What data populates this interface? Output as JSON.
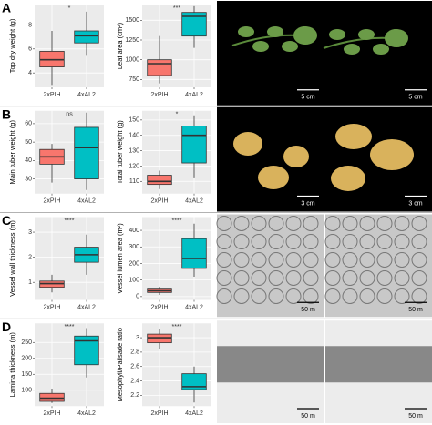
{
  "panels": [
    {
      "letter": "A",
      "scale_bars": [
        "5 cm",
        "5 cm"
      ]
    },
    {
      "letter": "B",
      "scale_bars": [
        "3 cm",
        "3 cm"
      ]
    },
    {
      "letter": "C",
      "scale_bars": [
        "50 m",
        "50 m"
      ]
    },
    {
      "letter": "D",
      "scale_bars": [
        "50 m",
        "50 m"
      ]
    }
  ],
  "chart_data": [
    {
      "type": "box",
      "y_label": "Top dry weight (g)",
      "significance": "*",
      "categories": [
        "2xPIH",
        "4xAL2"
      ],
      "colors": [
        "#f8766d",
        "#00bfc4"
      ],
      "boxes": [
        {
          "whislo": 3.0,
          "q1": 4.5,
          "med": 5.1,
          "q3": 5.8,
          "whishi": 7.5
        },
        {
          "whislo": 5.5,
          "q1": 6.5,
          "med": 7.1,
          "q3": 7.5,
          "whishi": 9.1
        }
      ],
      "ylim": [
        2.8,
        9.7
      ],
      "yticks": [
        4,
        6,
        8
      ],
      "grid": true
    },
    {
      "type": "box",
      "y_label": "Leaf area (cm²)",
      "significance": "***",
      "categories": [
        "2xPIH",
        "4xAL2"
      ],
      "colors": [
        "#f8766d",
        "#00bfc4"
      ],
      "boxes": [
        {
          "whislo": 700,
          "q1": 800,
          "med": 950,
          "q3": 1000,
          "whishi": 1300
        },
        {
          "whislo": 1150,
          "q1": 1300,
          "med": 1550,
          "q3": 1600,
          "whishi": 1680
        }
      ],
      "ylim": [
        650,
        1700
      ],
      "yticks": [
        750,
        1000,
        1250,
        1500
      ],
      "grid": true
    },
    {
      "type": "box",
      "y_label": "Main tuber weight (g)",
      "significance": "ns",
      "categories": [
        "2xPIH",
        "4xAL2"
      ],
      "colors": [
        "#f8766d",
        "#00bfc4"
      ],
      "boxes": [
        {
          "whislo": 28,
          "q1": 38,
          "med": 42,
          "q3": 46,
          "whishi": 49
        },
        {
          "whislo": 24,
          "q1": 30,
          "med": 47,
          "q3": 58,
          "whishi": 66
        }
      ],
      "ylim": [
        22,
        67
      ],
      "yticks": [
        30,
        40,
        50,
        60
      ],
      "grid": true
    },
    {
      "type": "box",
      "y_label": "Total tuber weight (g)",
      "significance": "*",
      "categories": [
        "2xPIH",
        "4xAL2"
      ],
      "colors": [
        "#f8766d",
        "#00bfc4"
      ],
      "boxes": [
        {
          "whislo": 105,
          "q1": 108,
          "med": 110,
          "q3": 114,
          "whishi": 117
        },
        {
          "whislo": 112,
          "q1": 122,
          "med": 140,
          "q3": 146,
          "whishi": 153
        }
      ],
      "ylim": [
        102,
        156
      ],
      "yticks": [
        110,
        120,
        130,
        140,
        150
      ],
      "grid": true
    },
    {
      "type": "box",
      "y_label": "Vessel wall thickness (m)",
      "significance": "****",
      "categories": [
        "2xPIH",
        "4xAL2"
      ],
      "colors": [
        "#f8766d",
        "#00bfc4"
      ],
      "boxes": [
        {
          "whislo": 0.6,
          "q1": 0.8,
          "med": 0.95,
          "q3": 1.05,
          "whishi": 1.3
        },
        {
          "whislo": 1.3,
          "q1": 1.8,
          "med": 2.1,
          "q3": 2.4,
          "whishi": 2.9
        }
      ],
      "ylim": [
        0.3,
        3.6
      ],
      "yticks": [
        1,
        2,
        3
      ],
      "grid": true
    },
    {
      "type": "box",
      "y_label": "Vessel lumen area (m²)",
      "significance": "****",
      "categories": [
        "2xPIH",
        "4xAL2"
      ],
      "colors": [
        "#f8766d",
        "#00bfc4"
      ],
      "boxes": [
        {
          "whislo": 10,
          "q1": 25,
          "med": 35,
          "q3": 45,
          "whishi": 60
        },
        {
          "whislo": 120,
          "q1": 170,
          "med": 230,
          "q3": 350,
          "whishi": 440
        }
      ],
      "ylim": [
        -20,
        480
      ],
      "yticks": [
        0,
        100,
        200,
        300,
        400
      ],
      "grid": true
    },
    {
      "type": "box",
      "y_label": "Lamina thickness (m)",
      "significance": "****",
      "categories": [
        "2xPIH",
        "4xAL2"
      ],
      "colors": [
        "#f8766d",
        "#00bfc4"
      ],
      "boxes": [
        {
          "whislo": 60,
          "q1": 65,
          "med": 75,
          "q3": 90,
          "whishi": 105
        },
        {
          "whislo": 140,
          "q1": 180,
          "med": 255,
          "q3": 270,
          "whishi": 295
        }
      ],
      "ylim": [
        50,
        310
      ],
      "yticks": [
        100,
        150,
        200,
        250
      ],
      "grid": true
    },
    {
      "type": "box",
      "y_label": "Mesophyll/Palisade ratio",
      "significance": "****",
      "categories": [
        "2xPIH",
        "4xAL2"
      ],
      "colors": [
        "#f8766d",
        "#00bfc4"
      ],
      "boxes": [
        {
          "whislo": 2.85,
          "q1": 2.93,
          "med": 3.0,
          "q3": 3.05,
          "whishi": 3.12
        },
        {
          "whislo": 2.1,
          "q1": 2.28,
          "med": 2.32,
          "q3": 2.5,
          "whishi": 2.6
        }
      ],
      "ylim": [
        2.05,
        3.2
      ],
      "yticks": [
        2.2,
        2.4,
        2.6,
        2.8,
        3.0
      ],
      "grid": true
    }
  ]
}
